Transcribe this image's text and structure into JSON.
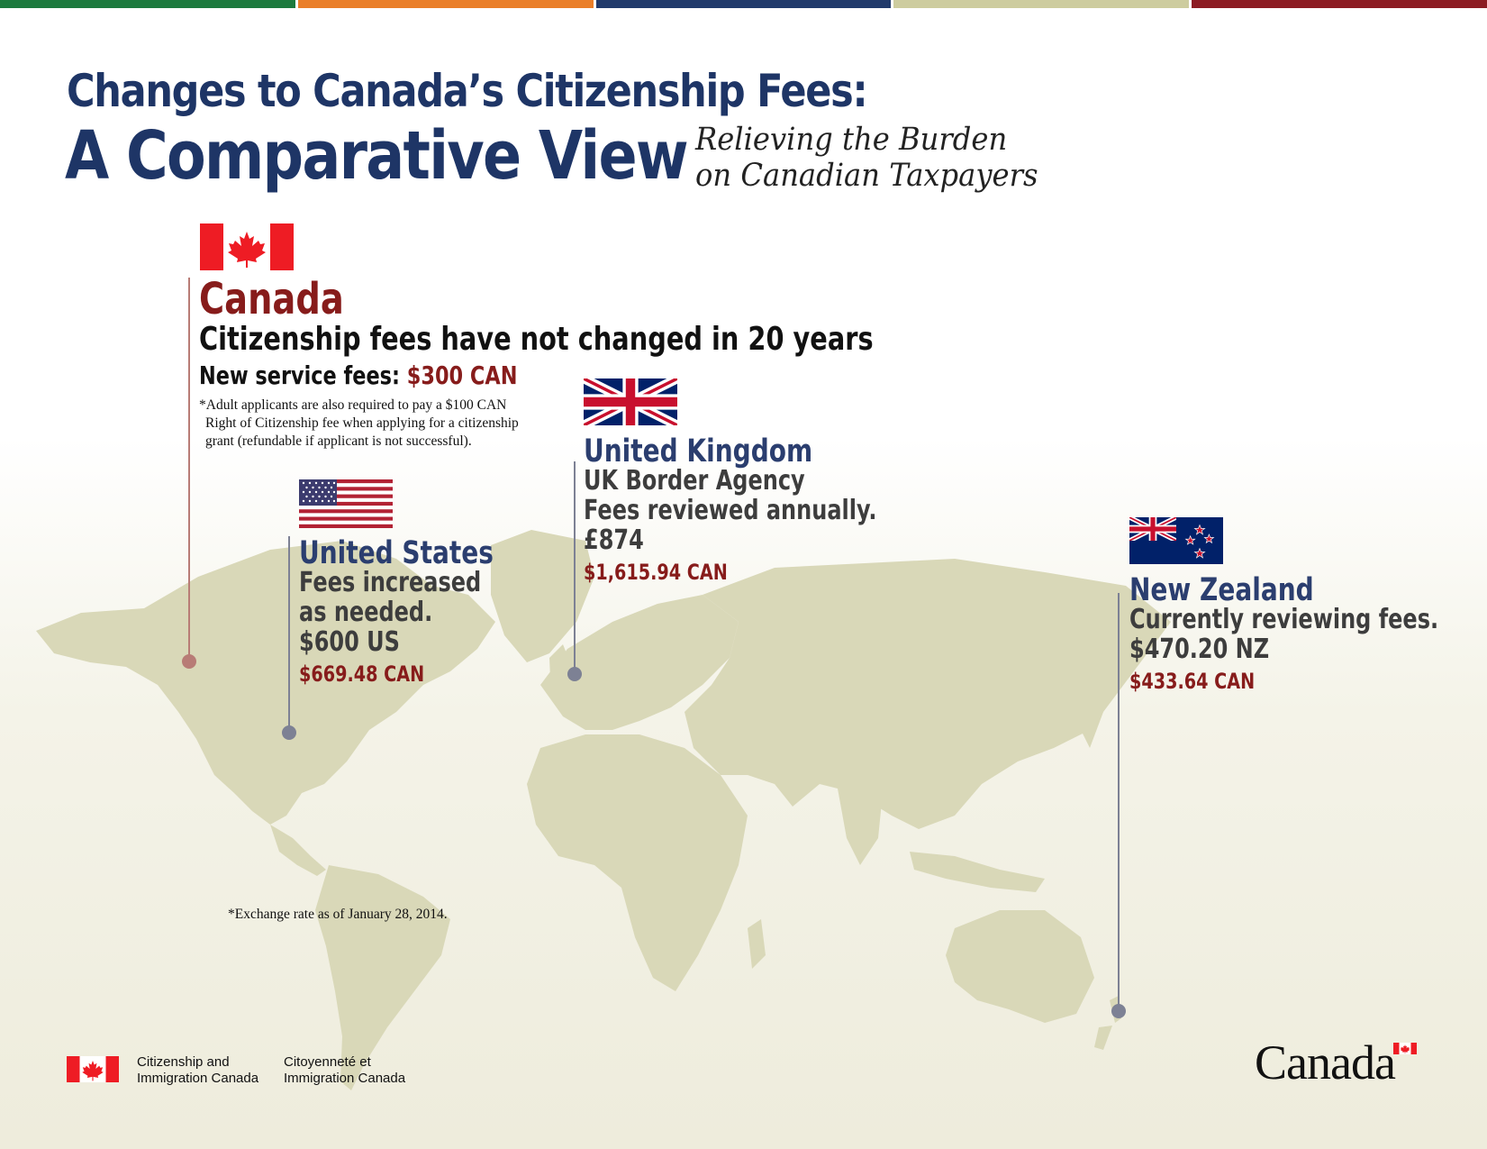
{
  "top_bar_colors": [
    "#1d7a3e",
    "#ea7f2a",
    "#213a6b",
    "#cdcc9f",
    "#8c1c23"
  ],
  "title": {
    "line1": "Changes to Canada’s Citizenship Fees:",
    "line2": "A Comparative View"
  },
  "subtitle": {
    "line1": "Relieving the Burden",
    "line2": "on Canadian Taxpayers"
  },
  "canada": {
    "name": "Canada",
    "headline": "Citizenship fees have not changed in 20 years",
    "fee_label": "New service fees: ",
    "fee_value": "$300 CAN",
    "note": [
      "*Adult applicants are also required to pay a $100 CAN",
      "Right of Citizenship fee when applying for a citizenship",
      "grant (refundable if applicant is not successful)."
    ]
  },
  "united_states": {
    "name": "United States",
    "lines": [
      "Fees increased",
      "as needed.",
      "$600 US"
    ],
    "can_value": "$669.48 CAN"
  },
  "united_kingdom": {
    "name": "United Kingdom",
    "lines": [
      "UK Border Agency",
      "Fees reviewed annually.",
      "£874"
    ],
    "can_value": "$1,615.94 CAN"
  },
  "new_zealand": {
    "name": "New Zealand",
    "lines": [
      "Currently reviewing fees.",
      "$470.20 NZ"
    ],
    "can_value": "$433.64 CAN"
  },
  "exchange_note": "*Exchange rate as of January 28, 2014.",
  "footer": {
    "dept_en": [
      "Citizenship and",
      "Immigration Canada"
    ],
    "dept_fr": [
      "Citoyenneté et",
      "Immigration Canada"
    ],
    "wordmark": "Canada"
  },
  "colors": {
    "title_navy": "#1e3566",
    "canada_red": "#871c1b",
    "country_navy": "#2b3e6f",
    "map_land": "#d9d8b8",
    "flag_red": "#ee1c24"
  }
}
